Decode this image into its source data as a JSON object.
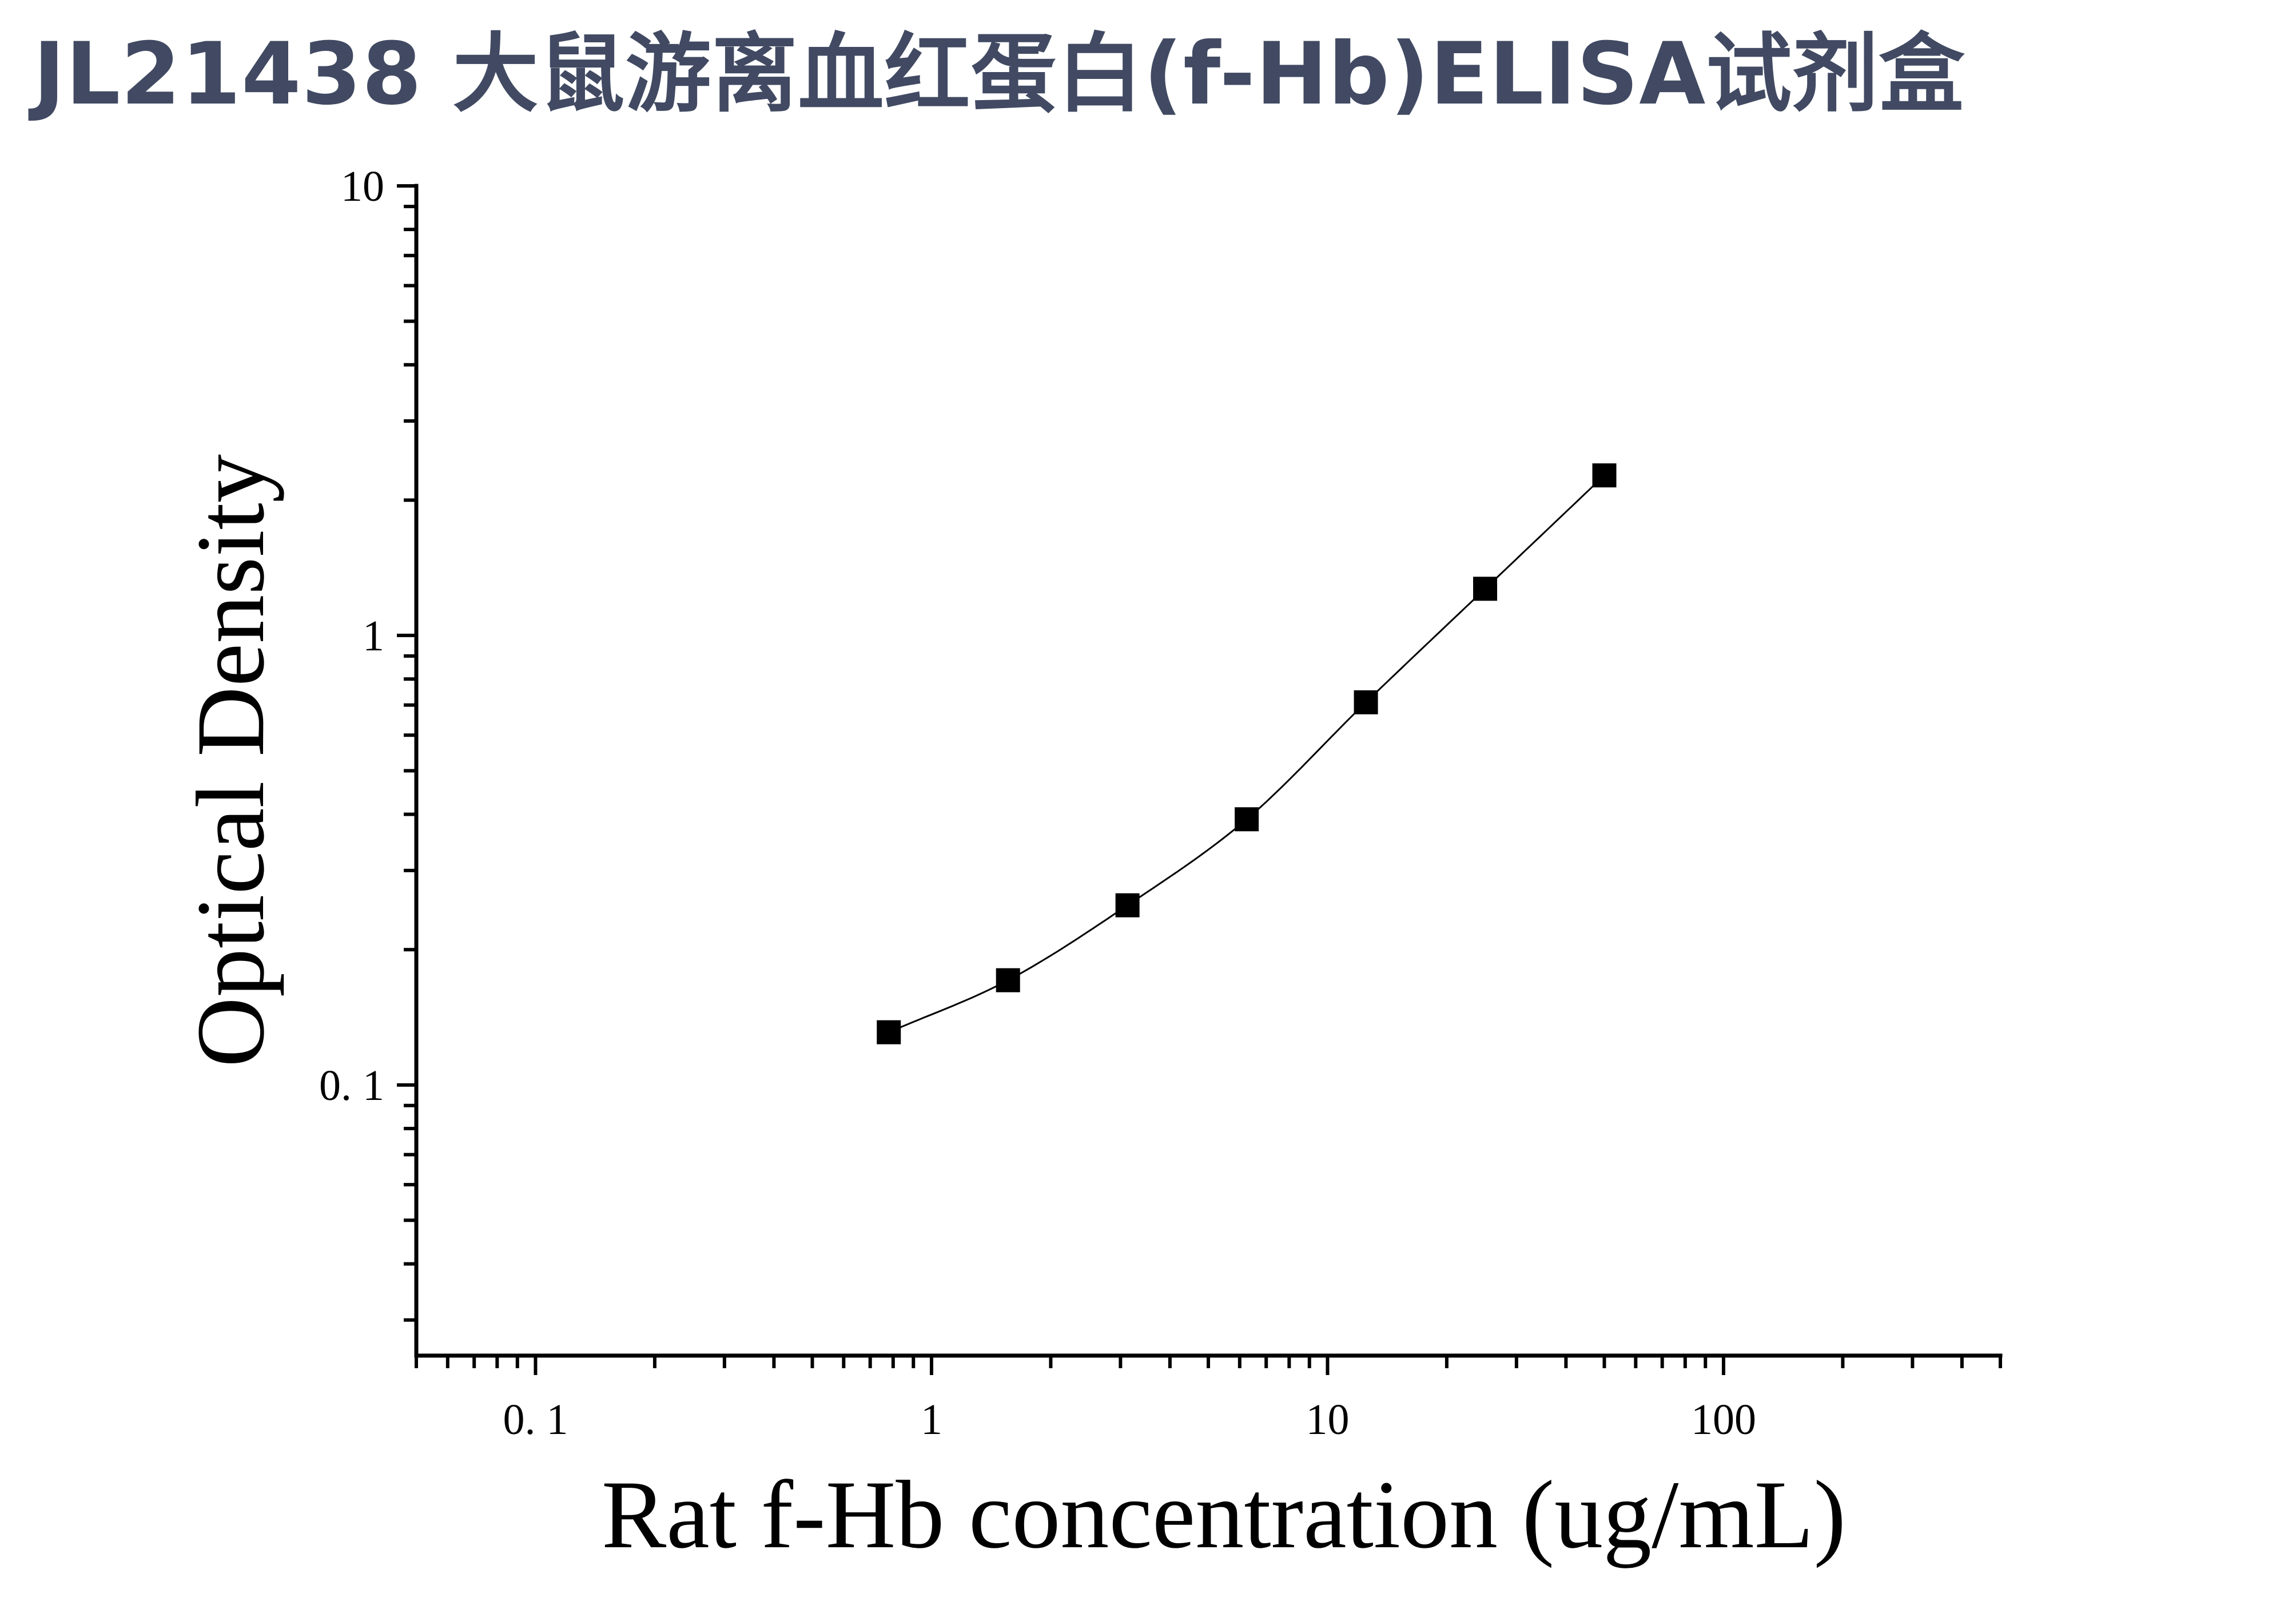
{
  "title": "JL21438 大鼠游离血红蛋白(f-Hb)ELISA试剂盒",
  "chart_data": {
    "type": "scatter",
    "xlabel": "Rat f-Hb concentration (ug/mL)",
    "ylabel": "Optical Density",
    "xscale": "log",
    "yscale": "log",
    "xlim": [
      0.05,
      500
    ],
    "ylim": [
      0.025,
      10
    ],
    "x_ticks": [
      0.1,
      1,
      10,
      100
    ],
    "x_tick_labels": [
      "0. 1",
      "1",
      "10",
      "100"
    ],
    "y_ticks": [
      0.1,
      1,
      10
    ],
    "y_tick_labels": [
      "0. 1",
      "1",
      "10"
    ],
    "grid": false,
    "legend": "none",
    "marker": "square",
    "fit_line": true,
    "color": "#000000",
    "series": [
      {
        "x": [
          0.78,
          1.56,
          3.125,
          6.25,
          12.5,
          25,
          50
        ],
        "y": [
          0.131,
          0.171,
          0.251,
          0.39,
          0.71,
          1.27,
          2.27
        ]
      }
    ]
  }
}
